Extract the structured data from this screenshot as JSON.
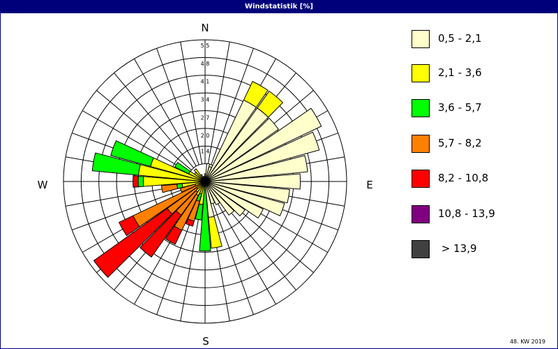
{
  "window": {
    "title": "Windstatistik [%]"
  },
  "footnote": "48. KW 2019",
  "colors": {
    "title_bg": "#00007b",
    "grid": "#000000"
  },
  "chart_data": {
    "type": "polar-stacked-bar",
    "title": "Windstatistik [%]",
    "directions_deg": [
      0,
      10,
      20,
      30,
      40,
      50,
      60,
      70,
      80,
      90,
      100,
      110,
      120,
      130,
      140,
      150,
      160,
      170,
      180,
      190,
      200,
      210,
      220,
      230,
      240,
      250,
      260,
      270,
      280,
      290,
      300,
      310,
      320,
      330,
      340,
      350
    ],
    "direction_labels": {
      "n": "N",
      "e": "E",
      "s": "S",
      "w": "W"
    },
    "radial_ticks": [
      "1,4",
      "2,0",
      "2,7",
      "3,4",
      "4,1",
      "4,8",
      "5,5"
    ],
    "rmax": 5.5,
    "legend": [
      {
        "label": "0,5 - 2,1",
        "color": "#ffffcc"
      },
      {
        "label": "2,1 - 3,6",
        "color": "#ffff00"
      },
      {
        "label": "3,6 - 5,7",
        "color": "#00ff00"
      },
      {
        "label": "5,7 - 8,2",
        "color": "#ff8000"
      },
      {
        "label": "8,2 - 10,8",
        "color": "#ff0000"
      },
      {
        "label": "10,8 - 13,9",
        "color": "#800080"
      },
      {
        "label": " > 13,9",
        "color": "#404040"
      }
    ],
    "series": [
      {
        "name": "0,5 - 2,1",
        "values": [
          0.3,
          0.7,
          0.6,
          3.5,
          3.5,
          3.5,
          5.0,
          4.6,
          4.0,
          3.7,
          3.3,
          3.2,
          2.5,
          1.9,
          1.6,
          1.0,
          0.9,
          1.4,
          0.3,
          0.2,
          0.1,
          0.1,
          0.1,
          0.1,
          0.1,
          0.1,
          0.1,
          0.1,
          0.1,
          0.1,
          0.1,
          0.1,
          0.2,
          0.3,
          0.2,
          0.2
        ]
      },
      {
        "name": "2,1 - 3,6",
        "values": [
          0,
          0,
          0,
          0.8,
          0.8,
          0,
          0,
          0,
          0,
          0,
          0,
          0,
          0,
          0,
          0,
          0,
          0,
          1.2,
          0,
          0.7,
          0.4,
          0.5,
          0.4,
          0.3,
          0,
          0.3,
          0.8,
          2.3,
          2.5,
          2.1,
          0.6,
          0.4,
          0.4,
          0,
          0,
          0
        ]
      },
      {
        "name": "3,6 - 5,7",
        "values": [
          0,
          0,
          0,
          0,
          0,
          0,
          0,
          0,
          0,
          0,
          0,
          0,
          0,
          0,
          0,
          0,
          0,
          0,
          2.4,
          0.6,
          0.3,
          0,
          0,
          0,
          0,
          0,
          0.2,
          0.2,
          1.8,
          1.6,
          0.6,
          0,
          0,
          0,
          0,
          0
        ]
      },
      {
        "name": "5,7 - 8,2",
        "values": [
          0,
          0,
          0,
          0,
          0,
          0,
          0,
          0,
          0,
          0,
          0,
          0,
          0,
          0,
          0,
          0,
          0,
          0,
          0,
          0,
          0.8,
          1.5,
          1.1,
          1.4,
          3.0,
          0.6,
          0.6,
          0,
          0,
          0,
          0,
          0,
          0,
          0,
          0,
          0
        ]
      },
      {
        "name": "8,2 - 10,8",
        "values": [
          0,
          0,
          0,
          0,
          0,
          0,
          0,
          0,
          0,
          0,
          0,
          0,
          0,
          0,
          0,
          0,
          0,
          0,
          0,
          0,
          0.2,
          0.6,
          2.0,
          3.5,
          0.6,
          0,
          0,
          0.2,
          0,
          0,
          0,
          0,
          0,
          0,
          0,
          0
        ]
      },
      {
        "name": "10,8 - 13,9",
        "values": [
          0,
          0,
          0,
          0,
          0,
          0,
          0,
          0,
          0,
          0,
          0,
          0,
          0,
          0,
          0,
          0,
          0,
          0,
          0,
          0,
          0,
          0,
          0,
          0,
          0,
          0,
          0,
          0,
          0,
          0,
          0,
          0,
          0,
          0,
          0,
          0
        ]
      },
      {
        "name": " > 13,9",
        "values": [
          0,
          0,
          0,
          0,
          0,
          0,
          0,
          0,
          0,
          0,
          0,
          0,
          0,
          0,
          0,
          0,
          0,
          0,
          0,
          0,
          0,
          0,
          0,
          0,
          0,
          0,
          0,
          0,
          0,
          0,
          0,
          0,
          0,
          0,
          0,
          0
        ]
      }
    ]
  }
}
